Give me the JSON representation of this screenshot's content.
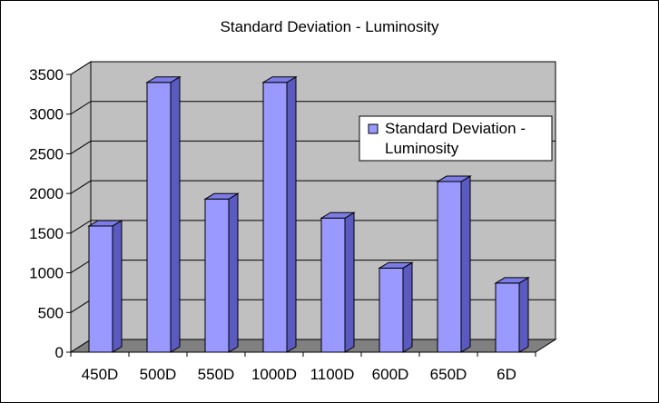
{
  "chart_data": {
    "type": "bar",
    "title": "Standard Deviation - Luminosity",
    "categories": [
      "450D",
      "500D",
      "550D",
      "1000D",
      "1100D",
      "600D",
      "650D",
      "6D"
    ],
    "series": [
      {
        "name": "Standard Deviation - Luminosity",
        "values": [
          1590,
          3400,
          1930,
          3400,
          1690,
          1060,
          2150,
          870
        ]
      }
    ],
    "ylim": [
      0,
      3500
    ],
    "yticks": [
      0,
      500,
      1000,
      1500,
      2000,
      2500,
      3000,
      3500
    ],
    "grid": true,
    "legend_position": "right",
    "three_d": true,
    "colors": {
      "bar_front": "#9999ff",
      "bar_side": "#5a5ac0",
      "bar_top": "#7c7ce6",
      "wall": "#c0c0c0",
      "floor": "#808080",
      "grid": "#000000"
    }
  }
}
